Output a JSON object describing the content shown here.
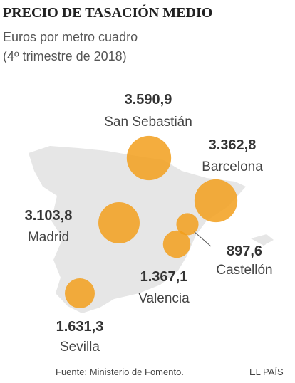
{
  "title": "PRECIO DE TASACIÓN MEDIO",
  "subtitle": [
    "Euros por metro cuadro",
    "(4º trimestre de 2018)"
  ],
  "cities": [
    {
      "name": "San Sebastián",
      "value": 3590.9,
      "value_label": "3.590,9"
    },
    {
      "name": "Barcelona",
      "value": 3362.8,
      "value_label": "3.362,8"
    },
    {
      "name": "Madrid",
      "value": 3103.8,
      "value_label": "3.103,8"
    },
    {
      "name": "Castellón",
      "value": 897.6,
      "value_label": "897,6"
    },
    {
      "name": "Valencia",
      "value": 1367.1,
      "value_label": "1.367,1"
    },
    {
      "name": "Sevilla",
      "value": 1631.3,
      "value_label": "1.631,3"
    }
  ],
  "source": "Fuente: Ministerio de Fomento.",
  "credit": "EL PAÍS"
}
